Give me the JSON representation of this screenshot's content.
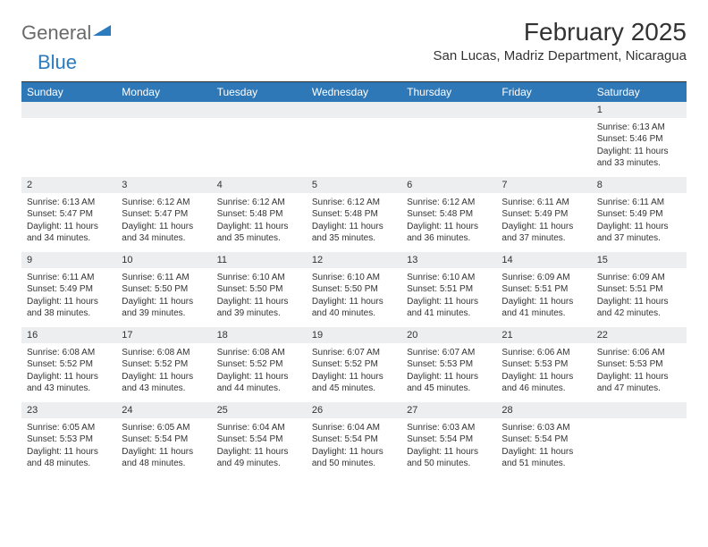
{
  "logo": {
    "word1": "General",
    "word2": "Blue"
  },
  "title": "February 2025",
  "location": "San Lucas, Madriz Department, Nicaragua",
  "colors": {
    "header_bg": "#2f78b7",
    "header_text": "#ffffff",
    "daynum_bg": "#eceeef",
    "divider": "#5a5a5a",
    "logo_gray": "#6a6a6a",
    "logo_blue": "#2b7bbf"
  },
  "day_names": [
    "Sunday",
    "Monday",
    "Tuesday",
    "Wednesday",
    "Thursday",
    "Friday",
    "Saturday"
  ],
  "weeks": [
    [
      {
        "n": "",
        "sunrise": "",
        "sunset": "",
        "daylight": ""
      },
      {
        "n": "",
        "sunrise": "",
        "sunset": "",
        "daylight": ""
      },
      {
        "n": "",
        "sunrise": "",
        "sunset": "",
        "daylight": ""
      },
      {
        "n": "",
        "sunrise": "",
        "sunset": "",
        "daylight": ""
      },
      {
        "n": "",
        "sunrise": "",
        "sunset": "",
        "daylight": ""
      },
      {
        "n": "",
        "sunrise": "",
        "sunset": "",
        "daylight": ""
      },
      {
        "n": "1",
        "sunrise": "Sunrise: 6:13 AM",
        "sunset": "Sunset: 5:46 PM",
        "daylight": "Daylight: 11 hours and 33 minutes."
      }
    ],
    [
      {
        "n": "2",
        "sunrise": "Sunrise: 6:13 AM",
        "sunset": "Sunset: 5:47 PM",
        "daylight": "Daylight: 11 hours and 34 minutes."
      },
      {
        "n": "3",
        "sunrise": "Sunrise: 6:12 AM",
        "sunset": "Sunset: 5:47 PM",
        "daylight": "Daylight: 11 hours and 34 minutes."
      },
      {
        "n": "4",
        "sunrise": "Sunrise: 6:12 AM",
        "sunset": "Sunset: 5:48 PM",
        "daylight": "Daylight: 11 hours and 35 minutes."
      },
      {
        "n": "5",
        "sunrise": "Sunrise: 6:12 AM",
        "sunset": "Sunset: 5:48 PM",
        "daylight": "Daylight: 11 hours and 35 minutes."
      },
      {
        "n": "6",
        "sunrise": "Sunrise: 6:12 AM",
        "sunset": "Sunset: 5:48 PM",
        "daylight": "Daylight: 11 hours and 36 minutes."
      },
      {
        "n": "7",
        "sunrise": "Sunrise: 6:11 AM",
        "sunset": "Sunset: 5:49 PM",
        "daylight": "Daylight: 11 hours and 37 minutes."
      },
      {
        "n": "8",
        "sunrise": "Sunrise: 6:11 AM",
        "sunset": "Sunset: 5:49 PM",
        "daylight": "Daylight: 11 hours and 37 minutes."
      }
    ],
    [
      {
        "n": "9",
        "sunrise": "Sunrise: 6:11 AM",
        "sunset": "Sunset: 5:49 PM",
        "daylight": "Daylight: 11 hours and 38 minutes."
      },
      {
        "n": "10",
        "sunrise": "Sunrise: 6:11 AM",
        "sunset": "Sunset: 5:50 PM",
        "daylight": "Daylight: 11 hours and 39 minutes."
      },
      {
        "n": "11",
        "sunrise": "Sunrise: 6:10 AM",
        "sunset": "Sunset: 5:50 PM",
        "daylight": "Daylight: 11 hours and 39 minutes."
      },
      {
        "n": "12",
        "sunrise": "Sunrise: 6:10 AM",
        "sunset": "Sunset: 5:50 PM",
        "daylight": "Daylight: 11 hours and 40 minutes."
      },
      {
        "n": "13",
        "sunrise": "Sunrise: 6:10 AM",
        "sunset": "Sunset: 5:51 PM",
        "daylight": "Daylight: 11 hours and 41 minutes."
      },
      {
        "n": "14",
        "sunrise": "Sunrise: 6:09 AM",
        "sunset": "Sunset: 5:51 PM",
        "daylight": "Daylight: 11 hours and 41 minutes."
      },
      {
        "n": "15",
        "sunrise": "Sunrise: 6:09 AM",
        "sunset": "Sunset: 5:51 PM",
        "daylight": "Daylight: 11 hours and 42 minutes."
      }
    ],
    [
      {
        "n": "16",
        "sunrise": "Sunrise: 6:08 AM",
        "sunset": "Sunset: 5:52 PM",
        "daylight": "Daylight: 11 hours and 43 minutes."
      },
      {
        "n": "17",
        "sunrise": "Sunrise: 6:08 AM",
        "sunset": "Sunset: 5:52 PM",
        "daylight": "Daylight: 11 hours and 43 minutes."
      },
      {
        "n": "18",
        "sunrise": "Sunrise: 6:08 AM",
        "sunset": "Sunset: 5:52 PM",
        "daylight": "Daylight: 11 hours and 44 minutes."
      },
      {
        "n": "19",
        "sunrise": "Sunrise: 6:07 AM",
        "sunset": "Sunset: 5:52 PM",
        "daylight": "Daylight: 11 hours and 45 minutes."
      },
      {
        "n": "20",
        "sunrise": "Sunrise: 6:07 AM",
        "sunset": "Sunset: 5:53 PM",
        "daylight": "Daylight: 11 hours and 45 minutes."
      },
      {
        "n": "21",
        "sunrise": "Sunrise: 6:06 AM",
        "sunset": "Sunset: 5:53 PM",
        "daylight": "Daylight: 11 hours and 46 minutes."
      },
      {
        "n": "22",
        "sunrise": "Sunrise: 6:06 AM",
        "sunset": "Sunset: 5:53 PM",
        "daylight": "Daylight: 11 hours and 47 minutes."
      }
    ],
    [
      {
        "n": "23",
        "sunrise": "Sunrise: 6:05 AM",
        "sunset": "Sunset: 5:53 PM",
        "daylight": "Daylight: 11 hours and 48 minutes."
      },
      {
        "n": "24",
        "sunrise": "Sunrise: 6:05 AM",
        "sunset": "Sunset: 5:54 PM",
        "daylight": "Daylight: 11 hours and 48 minutes."
      },
      {
        "n": "25",
        "sunrise": "Sunrise: 6:04 AM",
        "sunset": "Sunset: 5:54 PM",
        "daylight": "Daylight: 11 hours and 49 minutes."
      },
      {
        "n": "26",
        "sunrise": "Sunrise: 6:04 AM",
        "sunset": "Sunset: 5:54 PM",
        "daylight": "Daylight: 11 hours and 50 minutes."
      },
      {
        "n": "27",
        "sunrise": "Sunrise: 6:03 AM",
        "sunset": "Sunset: 5:54 PM",
        "daylight": "Daylight: 11 hours and 50 minutes."
      },
      {
        "n": "28",
        "sunrise": "Sunrise: 6:03 AM",
        "sunset": "Sunset: 5:54 PM",
        "daylight": "Daylight: 11 hours and 51 minutes."
      },
      {
        "n": "",
        "sunrise": "",
        "sunset": "",
        "daylight": ""
      }
    ]
  ]
}
